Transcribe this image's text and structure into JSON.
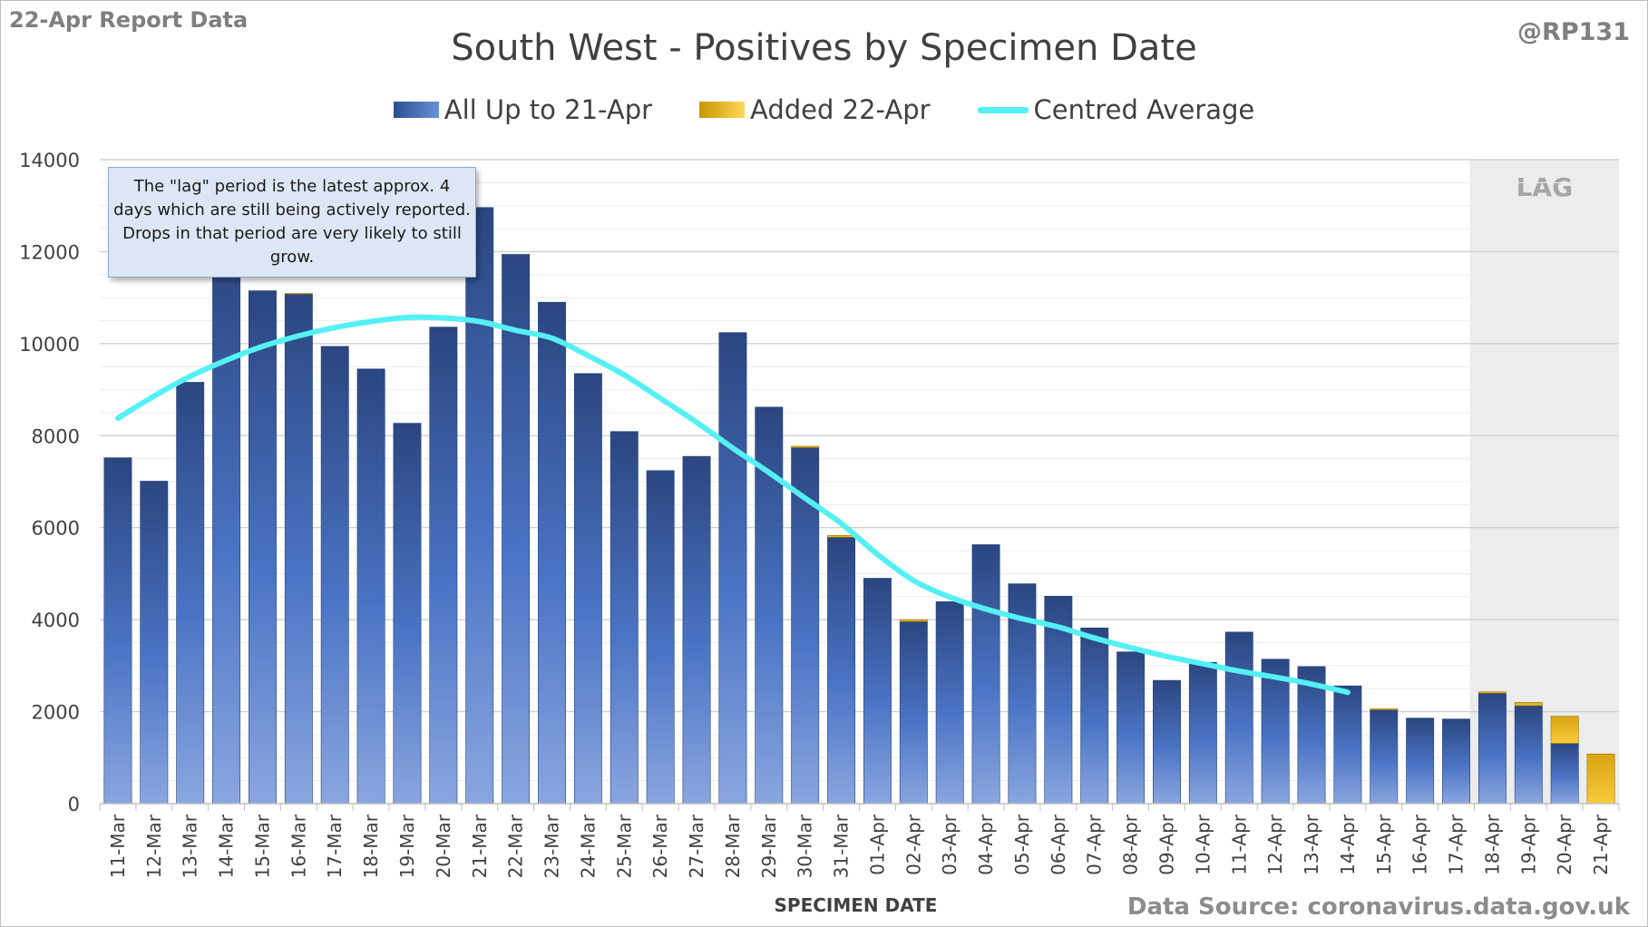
{
  "header": {
    "report_label": "22-Apr Report Data",
    "handle": "@RP131"
  },
  "footer": {
    "source": "Data Source: coronavirus.data.gov.uk"
  },
  "annotation": {
    "note": "The \"lag\" period is the latest approx. 4 days which are still being actively reported.  Drops in that period are very likely to still grow.",
    "lag_label": "LAG"
  },
  "colors": {
    "bar_dark": "#2b4680",
    "bar_light": "#8aa6df",
    "added": "#f2bc1a",
    "average": "#54f0f4",
    "lag_shade": "#ececec",
    "grid": "#d9d9d9"
  },
  "chart_data": {
    "type": "bar",
    "title": "South West - Positives by Specimen Date",
    "xlabel": "SPECIMEN DATE",
    "ylabel": "",
    "ylim": [
      0,
      14000
    ],
    "yticks": [
      0,
      2000,
      4000,
      6000,
      8000,
      10000,
      12000,
      14000
    ],
    "grid": true,
    "stacked": true,
    "legend_position": "top",
    "lag_categories": [
      "18-Apr",
      "19-Apr",
      "20-Apr",
      "21-Apr"
    ],
    "categories": [
      "11-Mar",
      "12-Mar",
      "13-Mar",
      "14-Mar",
      "15-Mar",
      "16-Mar",
      "17-Mar",
      "18-Mar",
      "19-Mar",
      "20-Mar",
      "21-Mar",
      "22-Mar",
      "23-Mar",
      "24-Mar",
      "25-Mar",
      "26-Mar",
      "27-Mar",
      "28-Mar",
      "29-Mar",
      "30-Mar",
      "31-Mar",
      "01-Apr",
      "02-Apr",
      "03-Apr",
      "04-Apr",
      "05-Apr",
      "06-Apr",
      "07-Apr",
      "08-Apr",
      "09-Apr",
      "10-Apr",
      "11-Apr",
      "12-Apr",
      "13-Apr",
      "14-Apr",
      "15-Apr",
      "16-Apr",
      "17-Apr",
      "18-Apr",
      "19-Apr",
      "20-Apr",
      "21-Apr"
    ],
    "series": [
      {
        "name": "All Up to 21-Apr",
        "type": "bar",
        "values": [
          7520,
          7010,
          9160,
          12050,
          11150,
          11080,
          9940,
          9450,
          8270,
          10360,
          12960,
          11940,
          10900,
          9350,
          8090,
          7240,
          7550,
          10240,
          8620,
          7740,
          5790,
          4900,
          3960,
          4390,
          5630,
          4780,
          4510,
          3820,
          3300,
          2680,
          3070,
          3730,
          3140,
          2980,
          2560,
          2040,
          1860,
          1840,
          2400,
          2130,
          1310,
          0
        ]
      },
      {
        "name": "Added 22-Apr",
        "type": "bar",
        "values": [
          0,
          0,
          0,
          0,
          0,
          10,
          0,
          0,
          0,
          0,
          0,
          0,
          0,
          0,
          0,
          0,
          0,
          0,
          0,
          30,
          40,
          0,
          40,
          0,
          0,
          0,
          0,
          0,
          0,
          0,
          0,
          0,
          0,
          0,
          0,
          20,
          0,
          0,
          30,
          70,
          590,
          1080
        ]
      },
      {
        "name": "Centred Average",
        "type": "line",
        "values": [
          8380,
          8860,
          9290,
          9640,
          9940,
          10170,
          10350,
          10480,
          10570,
          10560,
          10480,
          10290,
          10120,
          9740,
          9320,
          8810,
          8290,
          7730,
          7200,
          6640,
          6090,
          5420,
          4850,
          4490,
          4230,
          4020,
          3840,
          3600,
          3390,
          3200,
          3040,
          2880,
          2750,
          2600,
          2420,
          null,
          null,
          null,
          null,
          null,
          null,
          null
        ]
      }
    ]
  }
}
